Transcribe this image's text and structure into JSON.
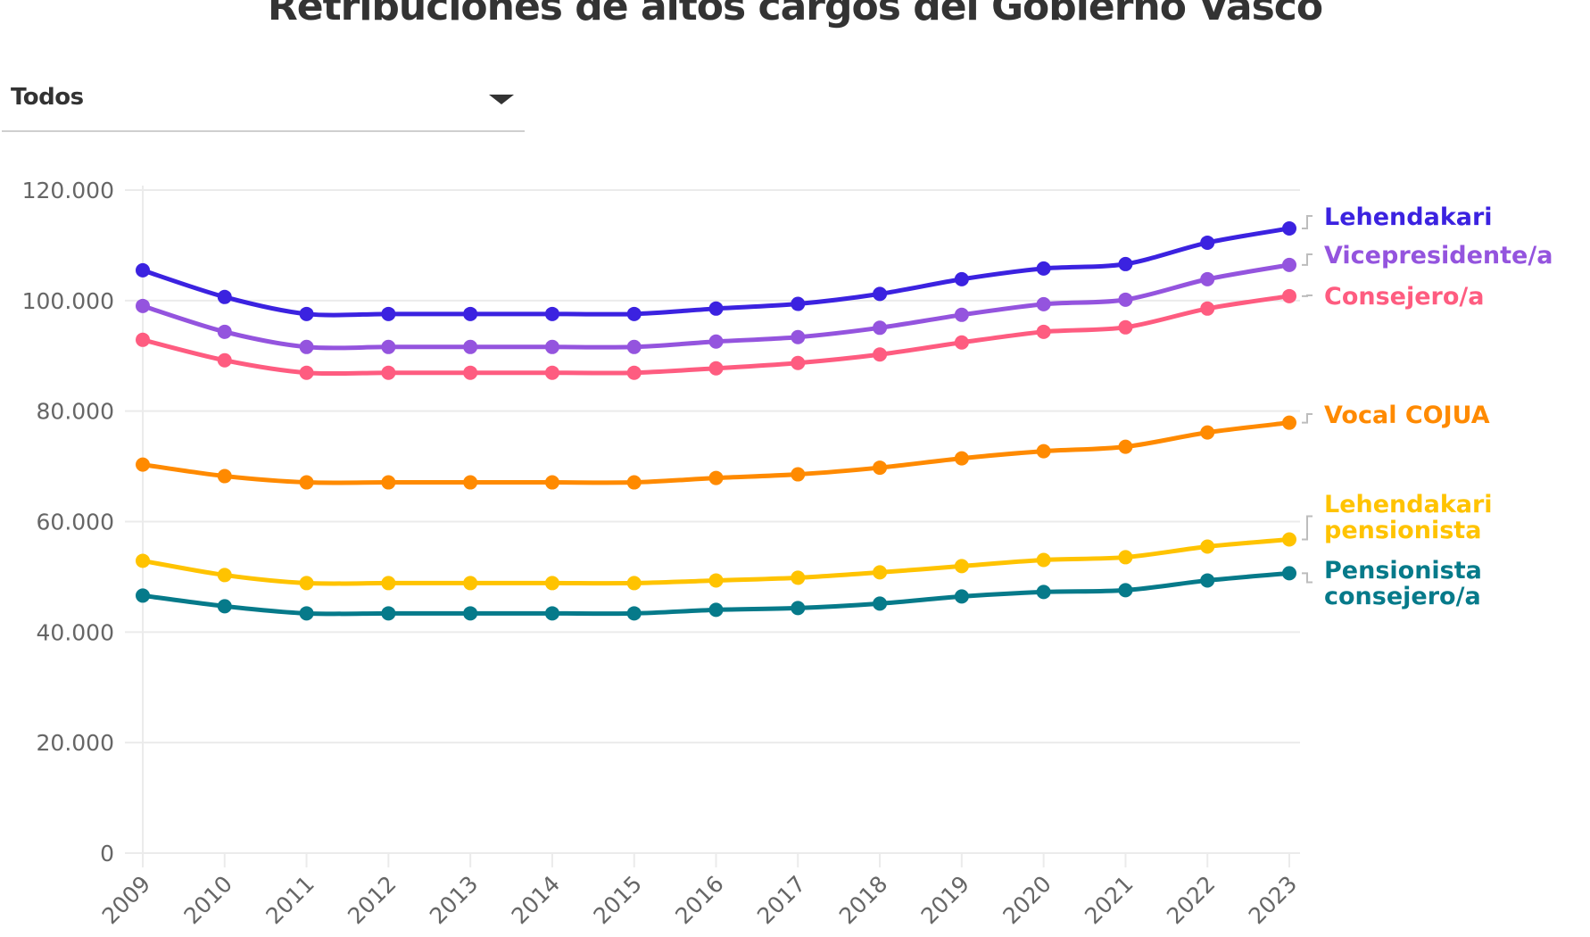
{
  "header": {
    "title": "Retribuciones de altos cargos del Gobierno Vasco"
  },
  "filter": {
    "selected": "Todos",
    "icon": "caret-down-icon"
  },
  "chart_data": {
    "type": "line",
    "title": "Retribuciones de altos cargos del Gobierno Vasco",
    "xlabel": "",
    "ylabel": "",
    "ylim": [
      0,
      120000
    ],
    "yticks": [
      0,
      20000,
      40000,
      60000,
      80000,
      100000,
      120000
    ],
    "ytick_labels": [
      "0",
      "20.000",
      "40.000",
      "60.000",
      "80.000",
      "100.000",
      "120.000"
    ],
    "grid": true,
    "legend": "right-end direct labels",
    "x": [
      "2009",
      "2010",
      "2011",
      "2012",
      "2013",
      "2014",
      "2015",
      "2016",
      "2017",
      "2018",
      "2019",
      "2020",
      "2021",
      "2022",
      "2023"
    ],
    "series": [
      {
        "name": "Lehendakari",
        "label_lines": [
          "Lehendakari"
        ],
        "color": "#3b22e0",
        "values": [
          105480,
          100650,
          97580,
          97580,
          97580,
          97580,
          97580,
          98550,
          99400,
          101200,
          103870,
          105810,
          106610,
          110480,
          113060
        ]
      },
      {
        "name": "Vicepresidente/a",
        "label_lines": [
          "Vicepresidente/a"
        ],
        "color": "#9454de",
        "values": [
          99030,
          94350,
          91610,
          91610,
          91610,
          91610,
          91610,
          92580,
          93390,
          95080,
          97420,
          99350,
          100160,
          103870,
          106450
        ]
      },
      {
        "name": "Consejero/a",
        "label_lines": [
          "Consejero/a"
        ],
        "color": "#fe5c80",
        "values": [
          92900,
          89190,
          86940,
          86940,
          86940,
          86940,
          86940,
          87740,
          88710,
          90240,
          92420,
          94350,
          95160,
          98550,
          100810
        ]
      },
      {
        "name": "Vocal COJUA",
        "label_lines": [
          "Vocal COJUA"
        ],
        "color": "#ff8a00",
        "values": [
          70320,
          68230,
          67100,
          67100,
          67100,
          67100,
          67100,
          67900,
          68550,
          69760,
          71450,
          72740,
          73550,
          76130,
          77900
        ]
      },
      {
        "name": "Lehendakari pensionista",
        "label_lines": [
          "Lehendakari",
          "pensionista"
        ],
        "color": "#ffc300",
        "values": [
          52900,
          50320,
          48870,
          48870,
          48870,
          48870,
          48870,
          49350,
          49840,
          50810,
          51940,
          53060,
          53550,
          55480,
          56770
        ]
      },
      {
        "name": "Pensionista consejero/a",
        "label_lines": [
          "Pensionista",
          "consejero/a"
        ],
        "color": "#067a8a",
        "values": [
          46610,
          44680,
          43390,
          43390,
          43390,
          43390,
          43390,
          44030,
          44350,
          45160,
          46450,
          47260,
          47580,
          49350,
          50650
        ]
      }
    ]
  }
}
